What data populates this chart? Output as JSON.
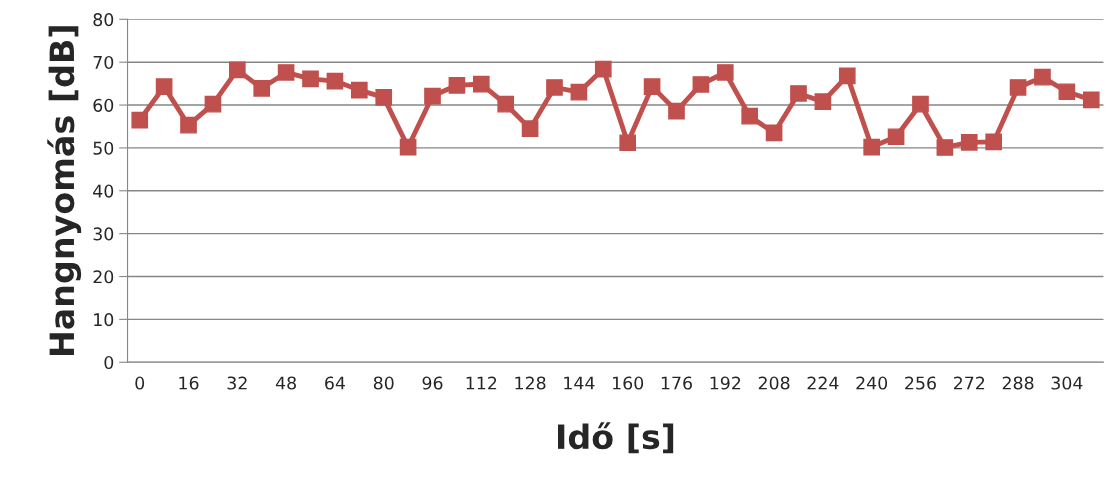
{
  "chart_data": {
    "type": "line",
    "xlabel": "Idő [s]",
    "ylabel": "Hangnyomás [dB]",
    "categories": [
      "0",
      null,
      "16",
      null,
      "32",
      null,
      "48",
      null,
      "64",
      null,
      "80",
      null,
      "96",
      null,
      "112",
      null,
      "128",
      null,
      "144",
      null,
      "160",
      null,
      "176",
      null,
      "192",
      null,
      "208",
      null,
      "224",
      null,
      "240",
      null,
      "256",
      null,
      "272",
      null,
      "288",
      null,
      "304",
      null
    ],
    "series": [
      {
        "color": "#c0504d",
        "values": [
          56.5,
          64.3,
          55.3,
          60.2,
          68.2,
          63.9,
          67.6,
          66.1,
          65.6,
          63.5,
          61.8,
          50.2,
          62.1,
          64.6,
          64.9,
          60.2,
          54.5,
          64.1,
          63.0,
          68.4,
          51.2,
          64.3,
          58.6,
          64.8,
          67.6,
          57.4,
          53.5,
          62.7,
          60.8,
          66.8,
          50.2,
          52.6,
          60.2,
          50.1,
          51.3,
          51.4,
          64.1,
          66.5,
          63.1,
          61.2
        ]
      }
    ],
    "ylim": [
      0,
      80
    ],
    "yticks": [
      0,
      10,
      20,
      30,
      40,
      50,
      60,
      70,
      80
    ],
    "grid": "y",
    "marker": "square",
    "line_style": "solid"
  }
}
